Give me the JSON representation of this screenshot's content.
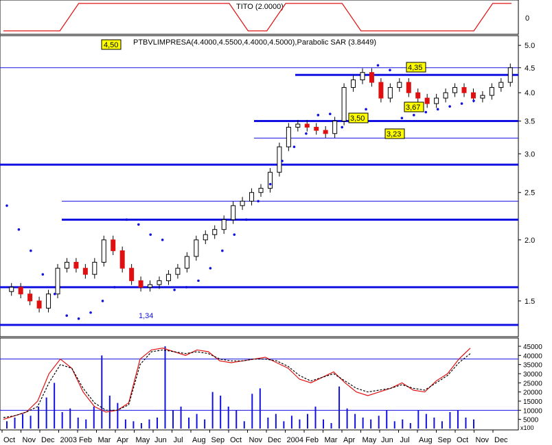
{
  "chart_data": [
    {
      "type": "line",
      "title": "TITO (2.0000)",
      "y_ticks": [
        "0"
      ],
      "series": [
        {
          "name": "TITO",
          "values": [
            -1,
            -1,
            -1,
            -1,
            1,
            1,
            1,
            1,
            1,
            1,
            1,
            1,
            1,
            -1,
            -1,
            1,
            1,
            1,
            1,
            -1,
            -1,
            -1,
            -1,
            -1,
            -1,
            -1,
            1,
            1
          ]
        }
      ],
      "color": "#e01010"
    },
    {
      "type": "candlestick",
      "title": "PTBVLIMPRESA(4.4000,4.5500,4.4000,4.5000),Parabolic SAR (3.8449)",
      "last_price_label": "4,50",
      "y_ticks": [
        "5.0",
        "4.5",
        "4.0",
        "3.5",
        "3.0",
        "2.5",
        "2.0",
        "1.5"
      ],
      "ylim": [
        1.28,
        5.1
      ],
      "log_scale": true,
      "series": [
        {
          "name": "PTBVLIMPRESA",
          "close": [
            1.6,
            1.55,
            1.5,
            1.45,
            1.55,
            1.75,
            1.8,
            1.75,
            1.7,
            1.8,
            2.0,
            1.9,
            1.75,
            1.65,
            1.6,
            1.62,
            1.65,
            1.7,
            1.75,
            1.85,
            2.0,
            2.05,
            2.1,
            2.2,
            2.35,
            2.4,
            2.5,
            2.55,
            2.75,
            3.1,
            3.4,
            3.45,
            3.4,
            3.35,
            3.3,
            3.5,
            4.1,
            4.25,
            4.4,
            4.2,
            3.9,
            4.1,
            4.2,
            4.0,
            3.9,
            3.8,
            3.9,
            4.0,
            4.1,
            4.0,
            3.9,
            3.95,
            4.1,
            4.2,
            4.5
          ]
        },
        {
          "name": "Parabolic SAR",
          "values": [
            2.35,
            2.1,
            1.9,
            1.7,
            1.55,
            1.4,
            1.38,
            1.42,
            1.5,
            1.6,
            2.2,
            2.15,
            2.05,
            2.0,
            1.58,
            1.6,
            1.65,
            1.75,
            1.9,
            2.05,
            2.2,
            2.4,
            2.6,
            2.9,
            3.1,
            3.3,
            3.6,
            3.62,
            3.4,
            3.5,
            3.7,
            4.55,
            4.45,
            3.55,
            3.6,
            3.65,
            3.7,
            3.75,
            3.8,
            3.85
          ]
        }
      ],
      "horizontal_levels": [
        4.5,
        4.35,
        3.5,
        3.23,
        2.85,
        2.4,
        2.2,
        1.6,
        1.34
      ],
      "annotations": [
        "4,35",
        "3,67",
        "3,50",
        "3,23",
        "1,34"
      ]
    },
    {
      "type": "bar",
      "title": "",
      "y_ticks": [
        "45000",
        "40000",
        "35000",
        "30000",
        "25000",
        "20000",
        "15000",
        "10000",
        "5000"
      ],
      "scale_note": "x100",
      "ylim": [
        0,
        48000
      ],
      "series": [
        {
          "name": "Volume",
          "values": [
            4000,
            6000,
            8000,
            7000,
            12000,
            17000,
            25000,
            9000,
            11000,
            6000,
            5000,
            12000,
            40000,
            18000,
            14000,
            5000,
            4000,
            3000,
            5000,
            6000,
            45000,
            10000,
            12000,
            6000,
            8000,
            5000,
            20000,
            18000,
            12000,
            10000,
            4000,
            19000,
            22000,
            6000,
            8000,
            4000,
            7000,
            5000,
            8000,
            12000,
            5000,
            3000,
            23000,
            11000,
            8000,
            6000,
            5000,
            7000,
            10000,
            4000,
            5000,
            3000,
            10000,
            8000,
            6000,
            4000,
            9000,
            10000,
            6000,
            5000
          ]
        },
        {
          "name": "Stochastic %K",
          "values": [
            5000,
            7000,
            9000,
            15000,
            30000,
            38000,
            33000,
            20000,
            12000,
            9000,
            10000,
            14000,
            38000,
            43000,
            44000,
            42000,
            40000,
            43000,
            42000,
            37000,
            36000,
            37000,
            38000,
            39000,
            36000,
            33000,
            27000,
            25000,
            28000,
            31000,
            25000,
            20000,
            18000,
            20000,
            22000,
            25000,
            21000,
            20000,
            26000,
            30000,
            38000,
            44000
          ]
        },
        {
          "name": "Stochastic %D",
          "values": [
            6000,
            7000,
            9000,
            12000,
            25000,
            35000,
            33000,
            22000,
            14000,
            10000,
            10000,
            13000,
            35000,
            42000,
            43000,
            42000,
            41000,
            42000,
            41000,
            38000,
            37000,
            37000,
            38000,
            38000,
            37000,
            34000,
            29000,
            26000,
            28000,
            30000,
            26000,
            22000,
            20000,
            21000,
            22000,
            24000,
            22000,
            21000,
            25000,
            29000,
            36000,
            41000
          ]
        }
      ],
      "horizontal_levels": [
        38000,
        10000
      ]
    }
  ],
  "x_axis": {
    "labels": [
      "Oct",
      "Nov",
      "Dec",
      "2003",
      "Feb",
      "Mar",
      "Apr",
      "May",
      "Jun",
      "Jul",
      "Aug",
      "Sep",
      "Oct",
      "Nov",
      "Dec",
      "2004",
      "Feb",
      "Mar",
      "Apr",
      "May",
      "Jun",
      "Jul",
      "Aug",
      "Sep",
      "Oct",
      "Nov",
      "Dec"
    ]
  },
  "colors": {
    "up": "#ffffff",
    "down": "#e01010",
    "level_line": "#1010e0",
    "sar": "#1010e0",
    "volume": "#1010e0",
    "stoch_k": "#e01010",
    "stoch_d": "#000000",
    "label_bg": "#ffff00"
  }
}
